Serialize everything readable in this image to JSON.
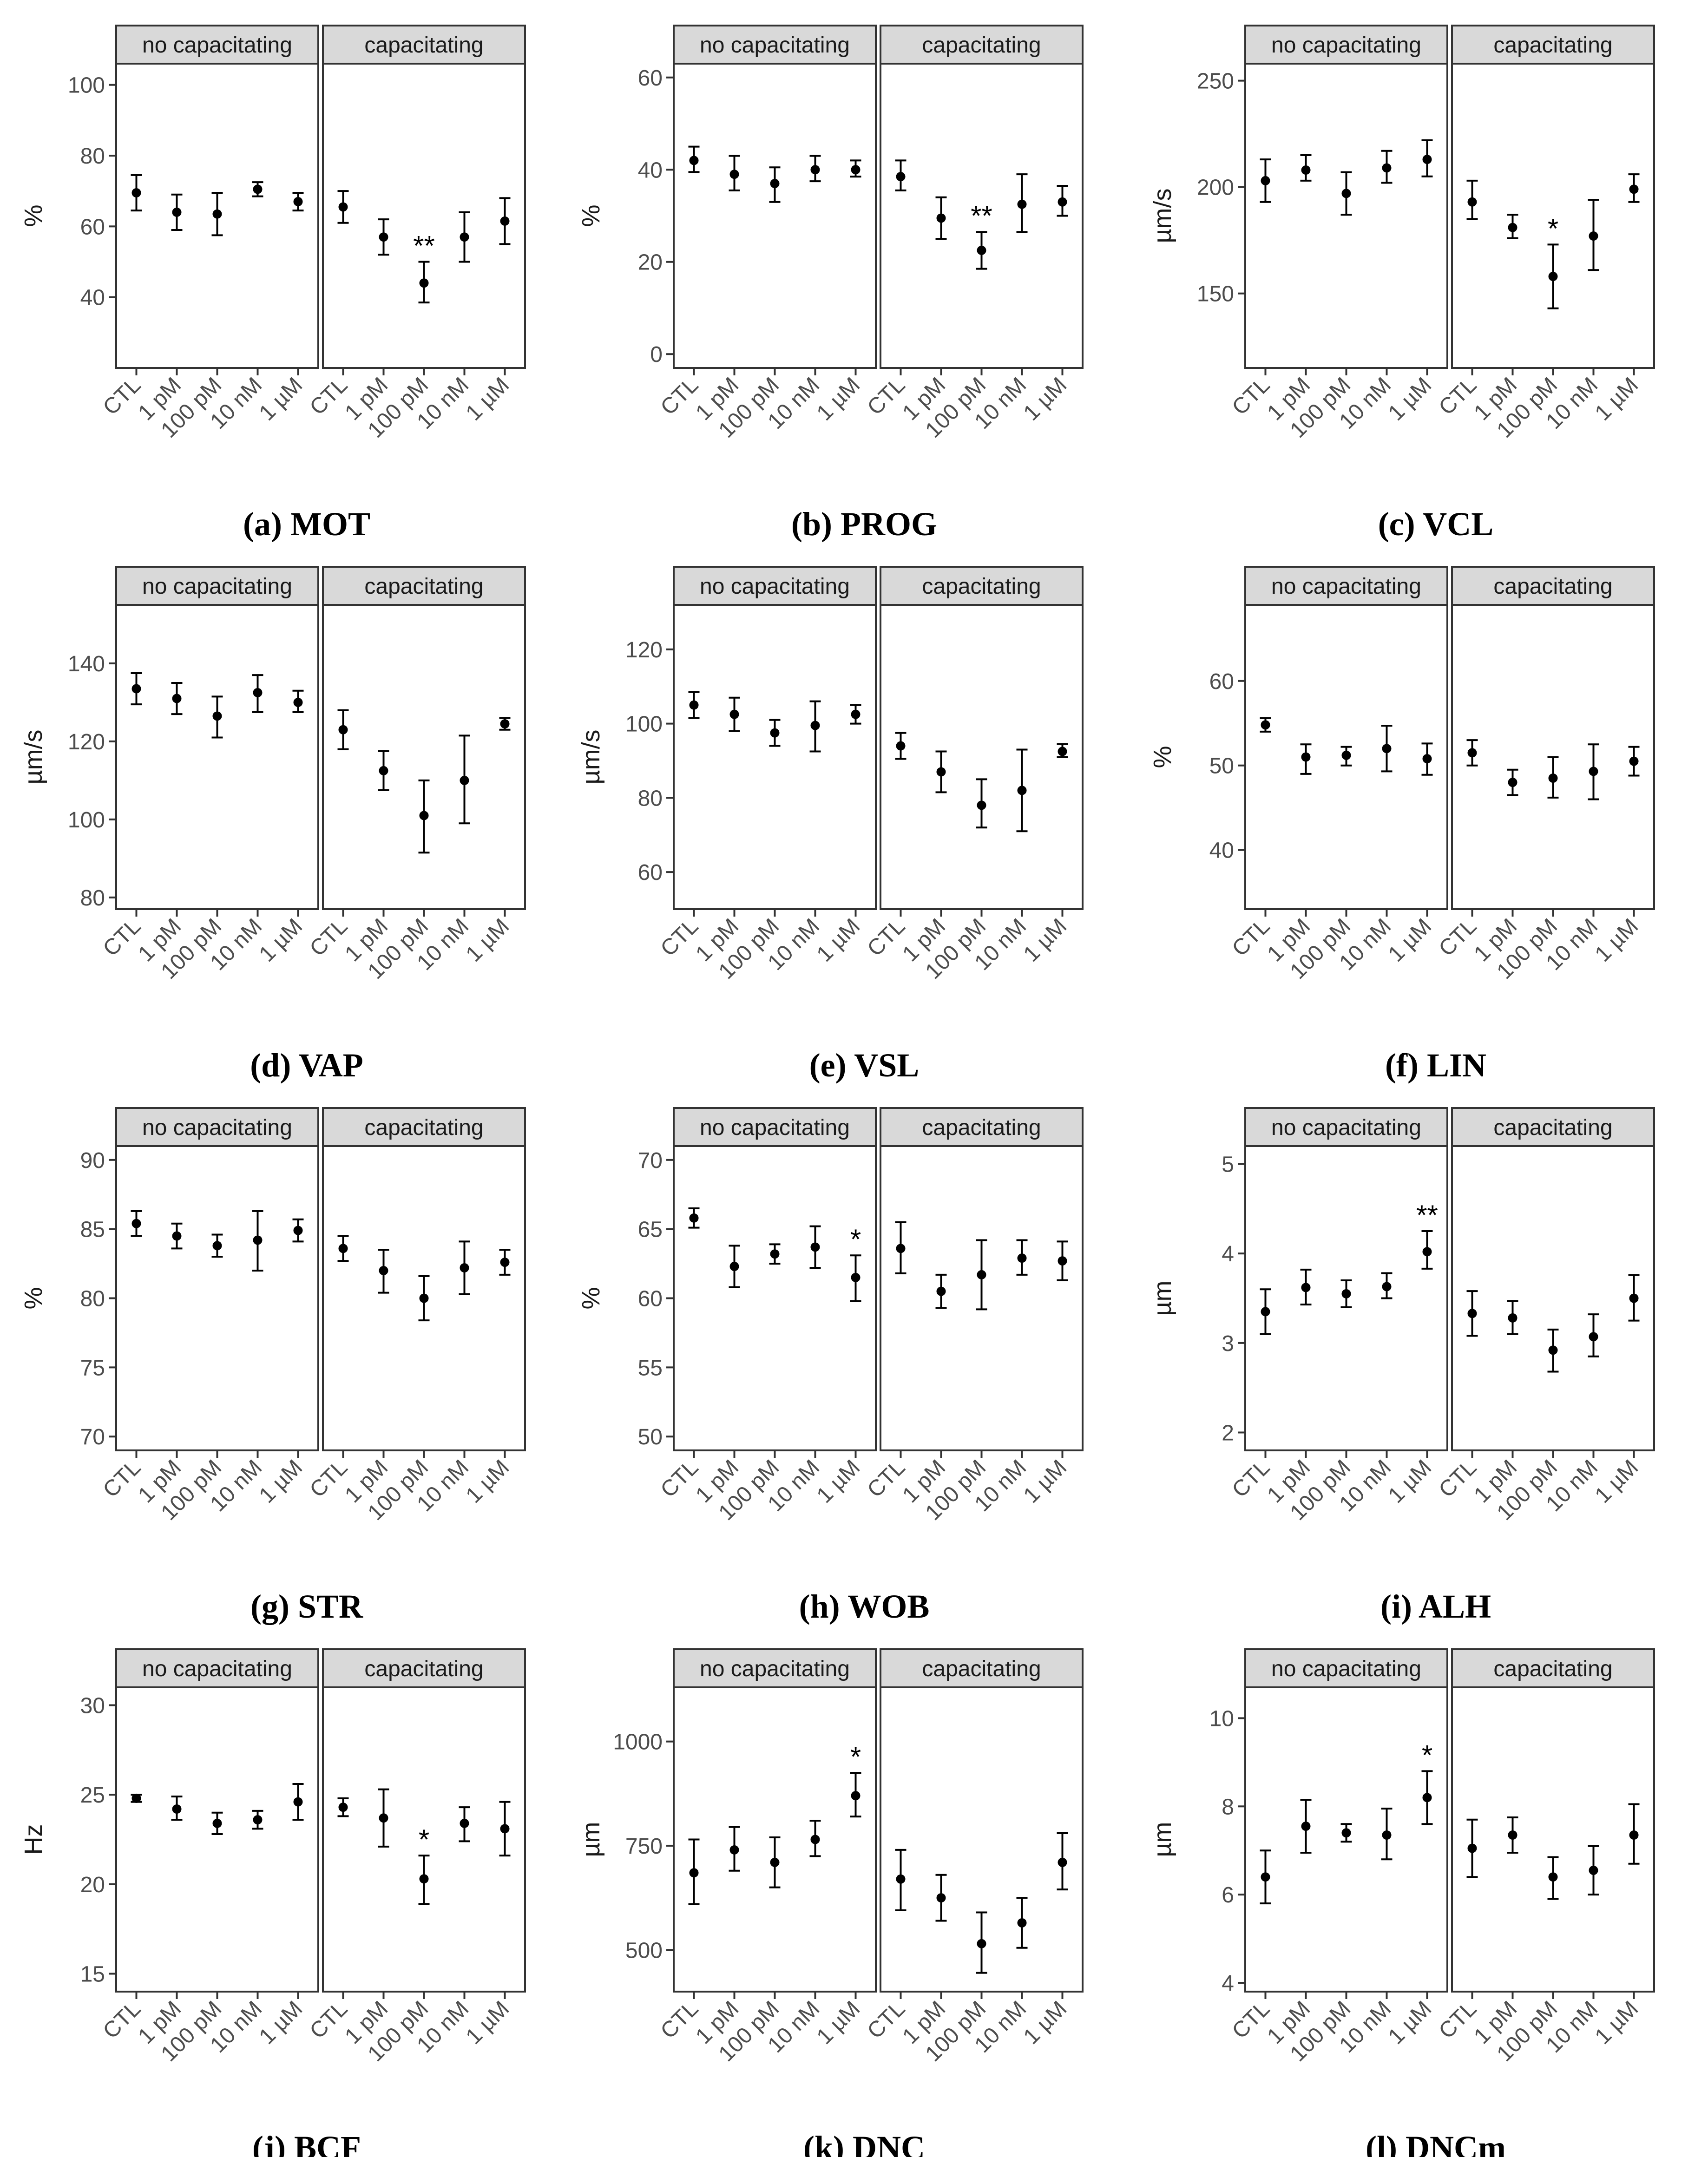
{
  "figure": {
    "facets": [
      "no capacitating",
      "capacitating"
    ],
    "categories": [
      "CTL",
      "1 pM",
      "100 pM",
      "10 nM",
      "1 µM"
    ]
  },
  "chart_data": [
    {
      "type": "scatter",
      "panel": "a",
      "caption": "(a) MOT",
      "ylabel": "%",
      "ylim": [
        20,
        106
      ],
      "yticks": [
        40,
        60,
        80,
        100
      ],
      "facets": {
        "no capacitating": {
          "mean": [
            69.5,
            64,
            63.5,
            70.5,
            67
          ],
          "lo": [
            64.5,
            59,
            57.5,
            68.5,
            64.5
          ],
          "hi": [
            74.5,
            69,
            69.5,
            72.5,
            69.5
          ],
          "sig": [
            "",
            "",
            "",
            "",
            ""
          ]
        },
        "capacitating": {
          "mean": [
            65.5,
            57,
            44,
            57,
            61.5
          ],
          "lo": [
            61,
            52,
            38.5,
            50,
            55
          ],
          "hi": [
            70,
            62,
            50,
            64,
            68
          ],
          "sig": [
            "",
            "",
            "**",
            "",
            ""
          ]
        }
      }
    },
    {
      "type": "scatter",
      "panel": "b",
      "caption": "(b) PROG",
      "ylabel": "%",
      "ylim": [
        -3,
        63
      ],
      "yticks": [
        0,
        20,
        40,
        60
      ],
      "facets": {
        "no capacitating": {
          "mean": [
            42,
            39,
            37,
            40,
            40
          ],
          "lo": [
            39.5,
            35.5,
            33,
            37.5,
            38.5
          ],
          "hi": [
            45,
            43,
            40.5,
            43,
            42
          ],
          "sig": [
            "",
            "",
            "",
            "",
            ""
          ]
        },
        "capacitating": {
          "mean": [
            38.5,
            29.5,
            22.5,
            32.5,
            33
          ],
          "lo": [
            35.5,
            25,
            18.5,
            26.5,
            30
          ],
          "hi": [
            42,
            34,
            26.5,
            39,
            36.5
          ],
          "sig": [
            "",
            "",
            "**",
            "",
            ""
          ]
        }
      }
    },
    {
      "type": "scatter",
      "panel": "c",
      "caption": "(c) VCL",
      "ylabel": "µm/s",
      "ylim": [
        115,
        258
      ],
      "yticks": [
        150,
        200,
        250
      ],
      "facets": {
        "no capacitating": {
          "mean": [
            203,
            208,
            197,
            209,
            213
          ],
          "lo": [
            193,
            203,
            187,
            202,
            205
          ],
          "hi": [
            213,
            215,
            207,
            217,
            222
          ],
          "sig": [
            "",
            "",
            "",
            "",
            ""
          ]
        },
        "capacitating": {
          "mean": [
            193,
            181,
            158,
            177,
            199
          ],
          "lo": [
            185,
            176,
            143,
            161,
            193
          ],
          "hi": [
            203,
            187,
            173,
            194,
            206
          ],
          "sig": [
            "",
            "",
            "*",
            "",
            ""
          ]
        }
      }
    },
    {
      "type": "scatter",
      "panel": "d",
      "caption": "(d) VAP",
      "ylabel": "µm/s",
      "ylim": [
        77,
        155
      ],
      "yticks": [
        80,
        100,
        120,
        140
      ],
      "facets": {
        "no capacitating": {
          "mean": [
            133.5,
            131,
            126.5,
            132.5,
            130
          ],
          "lo": [
            129.5,
            127,
            121,
            127.5,
            127.5
          ],
          "hi": [
            137.5,
            135,
            131.5,
            137,
            133
          ],
          "sig": [
            "",
            "",
            "",
            "",
            ""
          ]
        },
        "capacitating": {
          "mean": [
            123,
            112.5,
            101,
            110,
            124.5
          ],
          "lo": [
            118,
            107.5,
            91.5,
            99,
            123
          ],
          "hi": [
            128,
            117.5,
            110,
            121.5,
            126
          ],
          "sig": [
            "",
            "",
            "",
            "",
            ""
          ]
        }
      }
    },
    {
      "type": "scatter",
      "panel": "e",
      "caption": "(e) VSL",
      "ylabel": "µm/s",
      "ylim": [
        50,
        132
      ],
      "yticks": [
        60,
        80,
        100,
        120
      ],
      "facets": {
        "no capacitating": {
          "mean": [
            105,
            102.5,
            97.5,
            99.5,
            102.5
          ],
          "lo": [
            101.5,
            98,
            94,
            92.5,
            100
          ],
          "hi": [
            108.5,
            107,
            101,
            106,
            105
          ],
          "sig": [
            "",
            "",
            "",
            "",
            ""
          ]
        },
        "capacitating": {
          "mean": [
            94,
            87,
            78,
            82,
            92.5
          ],
          "lo": [
            90.5,
            81.5,
            72,
            71,
            91
          ],
          "hi": [
            97.5,
            92.5,
            85,
            93,
            94.5
          ],
          "sig": [
            "",
            "",
            "",
            "",
            ""
          ]
        }
      }
    },
    {
      "type": "scatter",
      "panel": "f",
      "caption": "(f) LIN",
      "ylabel": "%",
      "ylim": [
        33,
        69
      ],
      "yticks": [
        40,
        50,
        60
      ],
      "facets": {
        "no capacitating": {
          "mean": [
            54.8,
            51,
            51.2,
            52,
            50.8
          ],
          "lo": [
            54,
            49,
            50,
            49.3,
            48.9
          ],
          "hi": [
            55.6,
            52.5,
            52.2,
            54.7,
            52.6
          ],
          "sig": [
            "",
            "",
            "",
            "",
            ""
          ]
        },
        "capacitating": {
          "mean": [
            51.5,
            48,
            48.5,
            49.3,
            50.5
          ],
          "lo": [
            50,
            46.5,
            46.2,
            46,
            48.8
          ],
          "hi": [
            53,
            49.5,
            51,
            52.5,
            52.2
          ],
          "sig": [
            "",
            "",
            "",
            "",
            ""
          ]
        }
      }
    },
    {
      "type": "scatter",
      "panel": "g",
      "caption": "(g) STR",
      "ylabel": "%",
      "ylim": [
        69,
        91
      ],
      "yticks": [
        70,
        75,
        80,
        85,
        90
      ],
      "facets": {
        "no capacitating": {
          "mean": [
            85.4,
            84.5,
            83.8,
            84.2,
            84.9
          ],
          "lo": [
            84.5,
            83.6,
            83,
            82,
            84.1
          ],
          "hi": [
            86.3,
            85.4,
            84.6,
            86.3,
            85.7
          ],
          "sig": [
            "",
            "",
            "",
            "",
            ""
          ]
        },
        "capacitating": {
          "mean": [
            83.6,
            82,
            80,
            82.2,
            82.6
          ],
          "lo": [
            82.7,
            80.4,
            78.4,
            80.3,
            81.7
          ],
          "hi": [
            84.5,
            83.5,
            81.6,
            84.1,
            83.5
          ],
          "sig": [
            "",
            "",
            "",
            "",
            ""
          ]
        }
      }
    },
    {
      "type": "scatter",
      "panel": "h",
      "caption": "(h) WOB",
      "ylabel": "%",
      "ylim": [
        49,
        71
      ],
      "yticks": [
        50,
        55,
        60,
        65,
        70
      ],
      "facets": {
        "no capacitating": {
          "mean": [
            65.8,
            62.3,
            63.2,
            63.7,
            61.5
          ],
          "lo": [
            65.1,
            60.8,
            62.5,
            62.2,
            59.8
          ],
          "hi": [
            66.5,
            63.8,
            63.9,
            65.2,
            63.1
          ],
          "sig": [
            "",
            "",
            "",
            "",
            "*"
          ]
        },
        "capacitating": {
          "mean": [
            63.6,
            60.5,
            61.7,
            62.9,
            62.7
          ],
          "lo": [
            61.8,
            59.3,
            59.2,
            61.7,
            61.3
          ],
          "hi": [
            65.5,
            61.7,
            64.2,
            64.2,
            64.1
          ],
          "sig": [
            "",
            "",
            "",
            "",
            ""
          ]
        }
      }
    },
    {
      "type": "scatter",
      "panel": "i",
      "caption": "(i) ALH",
      "ylabel": "µm",
      "ylim": [
        1.8,
        5.2
      ],
      "yticks": [
        2,
        3,
        4,
        5
      ],
      "facets": {
        "no capacitating": {
          "mean": [
            3.35,
            3.62,
            3.55,
            3.63,
            4.02
          ],
          "lo": [
            3.1,
            3.43,
            3.4,
            3.5,
            3.83
          ],
          "hi": [
            3.6,
            3.82,
            3.7,
            3.78,
            4.25
          ],
          "sig": [
            "",
            "",
            "",
            "",
            "**"
          ]
        },
        "capacitating": {
          "mean": [
            3.33,
            3.28,
            2.92,
            3.07,
            3.5
          ],
          "lo": [
            3.08,
            3.1,
            2.68,
            2.85,
            3.25
          ],
          "hi": [
            3.58,
            3.47,
            3.15,
            3.32,
            3.76
          ],
          "sig": [
            "",
            "",
            "",
            "",
            ""
          ]
        }
      }
    },
    {
      "type": "scatter",
      "panel": "j",
      "caption": "(j) BCF",
      "ylabel": "Hz",
      "ylim": [
        14,
        31
      ],
      "yticks": [
        15,
        20,
        25,
        30
      ],
      "facets": {
        "no capacitating": {
          "mean": [
            24.8,
            24.2,
            23.4,
            23.6,
            24.6
          ],
          "lo": [
            24.6,
            23.6,
            22.8,
            23.1,
            23.6
          ],
          "hi": [
            25,
            24.9,
            24,
            24.1,
            25.6
          ],
          "sig": [
            "",
            "",
            "",
            "",
            ""
          ]
        },
        "capacitating": {
          "mean": [
            24.3,
            23.7,
            20.3,
            23.4,
            23.1
          ],
          "lo": [
            23.8,
            22.1,
            18.9,
            22.4,
            21.6
          ],
          "hi": [
            24.8,
            25.3,
            21.6,
            24.3,
            24.6
          ],
          "sig": [
            "",
            "",
            "*",
            "",
            ""
          ]
        }
      }
    },
    {
      "type": "scatter",
      "panel": "k",
      "caption": "(k) DNC",
      "ylabel": "µm",
      "ylim": [
        400,
        1130
      ],
      "yticks": [
        500,
        750,
        1000
      ],
      "facets": {
        "no capacitating": {
          "mean": [
            685,
            740,
            710,
            765,
            870
          ],
          "lo": [
            610,
            690,
            650,
            725,
            820
          ],
          "hi": [
            765,
            795,
            770,
            810,
            925
          ],
          "sig": [
            "",
            "",
            "",
            "",
            "*"
          ]
        },
        "capacitating": {
          "mean": [
            670,
            625,
            515,
            565,
            710
          ],
          "lo": [
            595,
            570,
            445,
            505,
            645
          ],
          "hi": [
            740,
            680,
            590,
            625,
            780
          ],
          "sig": [
            "",
            "",
            "",
            "",
            ""
          ]
        }
      }
    },
    {
      "type": "scatter",
      "panel": "l",
      "caption": "(l) DNCm",
      "ylabel": "µm",
      "ylim": [
        3.8,
        10.7
      ],
      "yticks": [
        4,
        6,
        8,
        10
      ],
      "facets": {
        "no capacitating": {
          "mean": [
            6.4,
            7.55,
            7.4,
            7.35,
            8.2
          ],
          "lo": [
            5.8,
            6.95,
            7.2,
            6.8,
            7.6
          ],
          "hi": [
            7,
            8.15,
            7.6,
            7.95,
            8.8
          ],
          "sig": [
            "",
            "",
            "",
            "",
            "*"
          ]
        },
        "capacitating": {
          "mean": [
            7.05,
            7.35,
            6.4,
            6.55,
            7.35
          ],
          "lo": [
            6.4,
            6.95,
            5.9,
            6,
            6.7
          ],
          "hi": [
            7.7,
            7.75,
            6.85,
            7.1,
            8.05
          ],
          "sig": [
            "",
            "",
            "",
            "",
            ""
          ]
        }
      }
    }
  ]
}
